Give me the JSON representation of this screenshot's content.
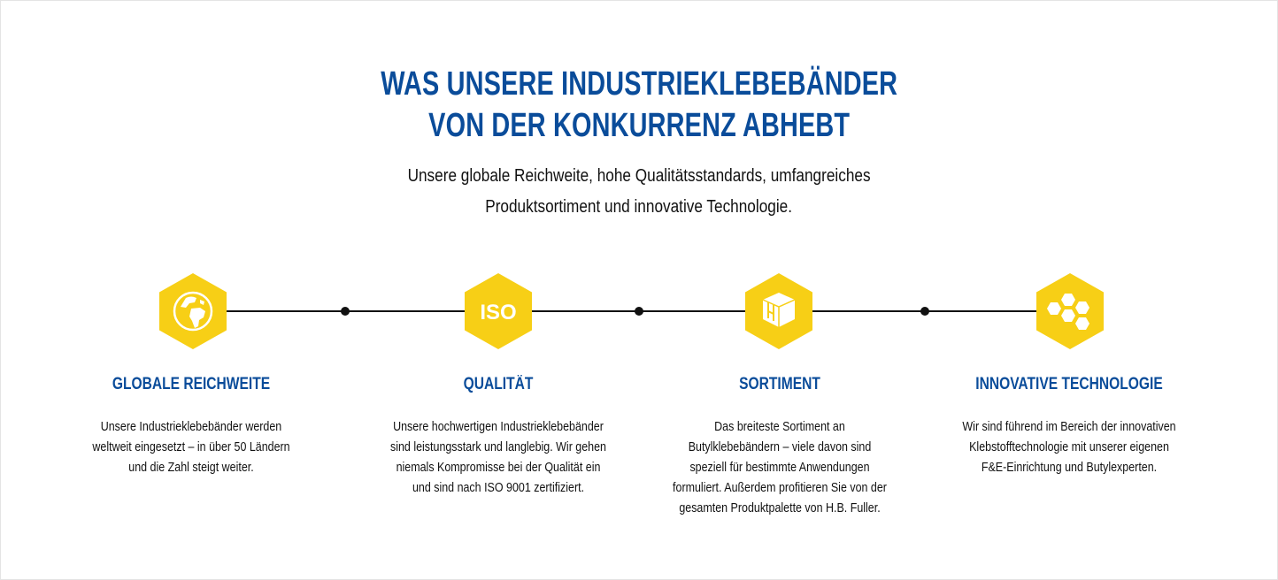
{
  "header": {
    "title_lines": [
      "WAS UNSERE INDUSTRIEKLEBEBÄNDER",
      "VON DER KONKURRENZ ABHEBT"
    ],
    "subtitle_lines": [
      "Unsere globale Reichweite, hohe Qualitätsstandards, umfangreiches",
      "Produktsortiment und innovative Technologie."
    ]
  },
  "colors": {
    "brand_blue": "#0a4c9a",
    "hex_yellow": "#f7cf16",
    "line": "#111111"
  },
  "features": [
    {
      "icon": "globe-icon",
      "title": "GLOBALE REICHWEITE",
      "lines": [
        "Unsere Industrieklebebänder werden",
        "weltweit eingesetzt – in über 50 Ländern",
        "und die Zahl steigt weiter."
      ]
    },
    {
      "icon": "iso-icon",
      "icon_text": "ISO",
      "title": "QUALITÄT",
      "lines": [
        "Unsere hochwertigen Industrieklebebänder",
        "sind leistungsstark und langlebig. Wir gehen",
        "niemals Kompromisse bei der Qualität ein",
        "und sind nach ISO 9001 zertifiziert."
      ]
    },
    {
      "icon": "box-icon",
      "title": "SORTIMENT",
      "lines": [
        "Das breiteste Sortiment an",
        "Butylklebebändern – viele davon sind",
        "speziell für bestimmte Anwendungen",
        "formuliert. Außerdem profitieren Sie von der",
        "gesamten Produktpalette von H.B. Fuller."
      ]
    },
    {
      "icon": "honeycomb-icon",
      "title": "INNOVATIVE TECHNOLOGIE",
      "lines": [
        "Wir sind führend im Bereich der innovativen",
        "Klebstofftechnologie mit unserer eigenen",
        "F&E-Einrichtung und Butylexperten."
      ]
    }
  ]
}
